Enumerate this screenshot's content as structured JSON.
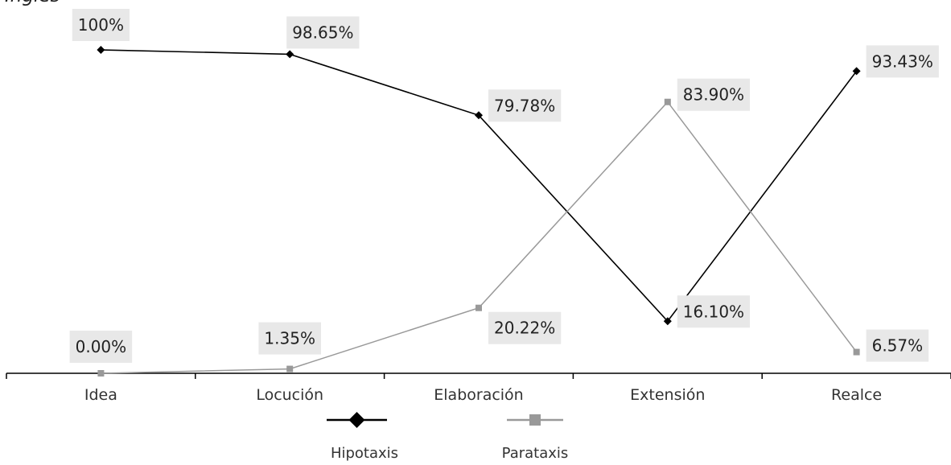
{
  "chart_data": {
    "type": "line",
    "title": "Inglés",
    "categories": [
      "Idea",
      "Locución",
      "Elaboración",
      "Extensión",
      "Realce"
    ],
    "ylim": [
      0,
      100
    ],
    "grid": false,
    "legend_position": "bottom",
    "series": [
      {
        "name": "Hipotaxis",
        "values": [
          100,
          98.65,
          79.78,
          16.1,
          93.43
        ],
        "labels": [
          "100%",
          "98.65%",
          "79.78%",
          "16.10%",
          "93.43%"
        ],
        "color": "#000000",
        "marker": "diamond"
      },
      {
        "name": "Parataxis",
        "values": [
          0.0,
          1.35,
          20.22,
          83.9,
          6.57
        ],
        "labels": [
          "0.00%",
          "1.35%",
          "20.22%",
          "83.90%",
          "6.57%"
        ],
        "color": "#999999",
        "marker": "square"
      }
    ]
  },
  "colors": {
    "label_background": "#e8e8e8",
    "axis": "#000000"
  }
}
